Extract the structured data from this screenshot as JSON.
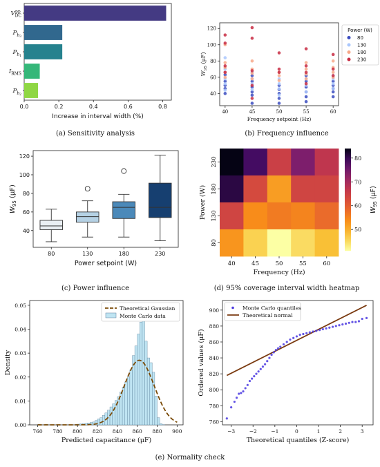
{
  "captions": {
    "a": "(a) Sensitivity analysis",
    "b": "(b) Frequency influence",
    "c": "(c) Power influence",
    "d": "(d) 95% coverage interval width heatmap",
    "e": "(e) Normality check"
  },
  "chart_data": [
    {
      "id": "a",
      "type": "bar",
      "orientation": "horizontal",
      "title": "",
      "xlabel": "Increase in interval width (%)",
      "ylabel": "",
      "xlim": [
        0,
        0.85
      ],
      "xticks": [
        0.0,
        0.2,
        0.4,
        0.6,
        0.8
      ],
      "xtick_labels": [
        "0.0",
        "0.2",
        "0.4",
        "0.6",
        "0.8"
      ],
      "categories": [
        {
          "base": "V",
          "sub": "DC",
          "sup": "pp"
        },
        {
          "base": "P",
          "sub": "h",
          "subsub": "3"
        },
        {
          "base": "P",
          "sub": "h",
          "subsub": "1"
        },
        {
          "base": "I",
          "sub": "RMS"
        },
        {
          "base": "P",
          "sub": "h",
          "subsub": "2"
        }
      ],
      "values": [
        0.82,
        0.22,
        0.22,
        0.09,
        0.08
      ],
      "colors": [
        "#443a83",
        "#31688e",
        "#26828e",
        "#35b779",
        "#8fd744"
      ]
    },
    {
      "id": "b",
      "type": "scatter",
      "title": "",
      "xlabel": "Frequency setpoint (Hz)",
      "ylabel": "W95 (μF)",
      "ylabel_parts": {
        "base": "W",
        "sub": "95",
        "rest": " (μF)"
      },
      "xlim": [
        39,
        61
      ],
      "ylim": [
        25,
        127
      ],
      "xticks": [
        40,
        45,
        50,
        55,
        60
      ],
      "yticks": [
        40,
        60,
        80,
        100,
        120
      ],
      "legend": {
        "title": "Power (W)",
        "placement": "outside-right"
      },
      "series": [
        {
          "name": "80",
          "color": "#3b4cc0",
          "points": [
            [
              40,
              40
            ],
            [
              40,
              46
            ],
            [
              40,
              50
            ],
            [
              40,
              55
            ],
            [
              40,
              63
            ],
            [
              45,
              28
            ],
            [
              45,
              38
            ],
            [
              45,
              42
            ],
            [
              45,
              48
            ],
            [
              45,
              55
            ],
            [
              45,
              62
            ],
            [
              50,
              28
            ],
            [
              50,
              34
            ],
            [
              50,
              40
            ],
            [
              50,
              45
            ],
            [
              50,
              50
            ],
            [
              55,
              30
            ],
            [
              55,
              36
            ],
            [
              55,
              42
            ],
            [
              55,
              48
            ],
            [
              55,
              55
            ],
            [
              55,
              62
            ],
            [
              60,
              36
            ],
            [
              60,
              42
            ],
            [
              60,
              46
            ],
            [
              60,
              50
            ],
            [
              60,
              55
            ]
          ]
        },
        {
          "name": "130",
          "color": "#aac7fd",
          "points": [
            [
              40,
              44
            ],
            [
              40,
              52
            ],
            [
              40,
              58
            ],
            [
              40,
              66
            ],
            [
              40,
              70
            ],
            [
              40,
              84
            ],
            [
              45,
              45
            ],
            [
              45,
              52
            ],
            [
              45,
              58
            ],
            [
              45,
              66
            ],
            [
              50,
              38
            ],
            [
              50,
              46
            ],
            [
              50,
              52
            ],
            [
              50,
              58
            ],
            [
              55,
              42
            ],
            [
              55,
              50
            ],
            [
              55,
              58
            ],
            [
              55,
              64
            ],
            [
              60,
              46
            ],
            [
              60,
              52
            ],
            [
              60,
              58
            ],
            [
              60,
              62
            ]
          ]
        },
        {
          "name": "180",
          "color": "#f7a889",
          "points": [
            [
              40,
              60
            ],
            [
              40,
              66
            ],
            [
              40,
              72
            ],
            [
              40,
              78
            ],
            [
              40,
              100
            ],
            [
              45,
              58
            ],
            [
              45,
              65
            ],
            [
              45,
              70
            ],
            [
              45,
              80
            ],
            [
              50,
              56
            ],
            [
              50,
              62
            ],
            [
              50,
              66
            ],
            [
              55,
              58
            ],
            [
              55,
              64
            ],
            [
              55,
              70
            ],
            [
              55,
              78
            ],
            [
              60,
              60
            ],
            [
              60,
              66
            ],
            [
              60,
              72
            ],
            [
              60,
              80
            ]
          ]
        },
        {
          "name": "230",
          "color": "#c82c43",
          "points": [
            [
              40,
              66
            ],
            [
              40,
              74
            ],
            [
              40,
              102
            ],
            [
              40,
              112
            ],
            [
              45,
              34
            ],
            [
              45,
              50
            ],
            [
              45,
              68
            ],
            [
              45,
              108
            ],
            [
              45,
              121
            ],
            [
              50,
              66
            ],
            [
              50,
              70
            ],
            [
              50,
              90
            ],
            [
              55,
              52
            ],
            [
              55,
              66
            ],
            [
              55,
              74
            ],
            [
              55,
              95
            ],
            [
              60,
              62
            ],
            [
              60,
              70
            ],
            [
              60,
              88
            ]
          ]
        }
      ]
    },
    {
      "id": "c",
      "type": "box",
      "title": "",
      "xlabel": "Power setpoint (W)",
      "ylabel": "W95 (μF)",
      "ylabel_parts": {
        "base": "W",
        "sub": "95",
        "rest": " (μF)"
      },
      "ylim": [
        22,
        126
      ],
      "yticks": [
        40,
        60,
        80,
        100,
        120
      ],
      "categories": [
        "80",
        "130",
        "180",
        "230"
      ],
      "boxes": [
        {
          "category": "80",
          "min": 28,
          "q1": 41,
          "median": 45,
          "q3": 51,
          "max": 63,
          "outliers": [],
          "color": "#e9eef3"
        },
        {
          "category": "130",
          "min": 33,
          "q1": 49,
          "median": 55,
          "q3": 60,
          "max": 72,
          "outliers": [
            85
          ],
          "color": "#b5d1e4"
        },
        {
          "category": "180",
          "min": 33,
          "q1": 53,
          "median": 65,
          "q3": 71,
          "max": 79,
          "outliers": [
            104
          ],
          "color": "#4b89b9"
        },
        {
          "category": "230",
          "min": 29,
          "q1": 54,
          "median": 65,
          "q3": 91,
          "max": 121,
          "outliers": [],
          "color": "#163f70"
        }
      ]
    },
    {
      "id": "d",
      "type": "heatmap",
      "title": "",
      "xlabel": "Frequency (Hz)",
      "ylabel": "Power (W)",
      "x": [
        "40",
        "45",
        "50",
        "55",
        "60"
      ],
      "y": [
        "230",
        "180",
        "130",
        "80"
      ],
      "values": [
        [
          84,
          79,
          65,
          74,
          67
        ],
        [
          81,
          63,
          52,
          64,
          64
        ],
        [
          64,
          54,
          56,
          55,
          58
        ],
        [
          53,
          46,
          41,
          45,
          48
        ]
      ],
      "colorbar": {
        "label": "W95 (μF)",
        "label_parts": {
          "base": "W",
          "sub": "95",
          "rest": " (μF)"
        },
        "ticks": [
          50,
          60,
          70,
          80
        ],
        "range": [
          41,
          84
        ],
        "colormap": "inferno_r"
      }
    },
    {
      "id": "e1",
      "type": "histogram",
      "title": "",
      "xlabel": "Predicted capacitance (μF)",
      "ylabel": "Density",
      "xlim": [
        752,
        906
      ],
      "ylim": [
        0,
        0.052
      ],
      "xticks": [
        760,
        780,
        800,
        820,
        840,
        860,
        880,
        900
      ],
      "yticks": [
        0.0,
        0.01,
        0.02,
        0.03,
        0.04,
        0.05
      ],
      "ytick_labels": [
        "0.00",
        "0.01",
        "0.02",
        "0.03",
        "0.04",
        "0.05"
      ],
      "legend": {
        "placement": "top-left"
      },
      "series": [
        {
          "name": "Theoretical Gaussian",
          "kind": "curve",
          "color": "#7a4a06",
          "mean": 862,
          "std": 15,
          "peak": 0.027
        },
        {
          "name": "Monte Carlo data",
          "kind": "bars",
          "color": "#bfe4f2",
          "bin_start": 760,
          "bin_width": 2.5,
          "values": [
            0.0002,
            0,
            0,
            0.0002,
            0,
            0,
            0,
            0,
            0,
            0,
            0,
            0,
            0,
            0,
            0,
            0.0002,
            0.0003,
            0.0004,
            0.0005,
            0.0006,
            0.0008,
            0.001,
            0.0012,
            0.0018,
            0.0025,
            0.003,
            0.004,
            0.005,
            0.0062,
            0.0075,
            0.0088,
            0.0102,
            0.0118,
            0.0138,
            0.0158,
            0.018,
            0.02,
            0.023,
            0.029,
            0.033,
            0.038,
            0.043,
            0.044,
            0.035,
            0.028,
            0.026,
            0.022,
            0.012,
            0.003,
            0.0005,
            0.0001
          ]
        }
      ]
    },
    {
      "id": "e2",
      "type": "scatter",
      "subtype": "qq",
      "title": "",
      "xlabel": "Theoretical quantiles (Z-score)",
      "ylabel": "Ordered values (μF)",
      "xlim": [
        -3.4,
        3.5
      ],
      "ylim": [
        756,
        912
      ],
      "xticks": [
        -3,
        -2,
        -1,
        0,
        1,
        2,
        3
      ],
      "yticks": [
        760,
        780,
        800,
        820,
        840,
        860,
        880,
        900
      ],
      "legend": {
        "placement": "top-left"
      },
      "series": [
        {
          "name": "Monte Carlo quantiles",
          "kind": "points",
          "color": "#4a38e0",
          "points": [
            [
              -3.2,
              764
            ],
            [
              -3.0,
              778
            ],
            [
              -2.85,
              785
            ],
            [
              -2.75,
              790
            ],
            [
              -2.65,
              795
            ],
            [
              -2.55,
              796
            ],
            [
              -2.45,
              798
            ],
            [
              -2.35,
              802
            ],
            [
              -2.25,
              806
            ],
            [
              -2.15,
              811
            ],
            [
              -2.05,
              814
            ],
            [
              -1.95,
              817
            ],
            [
              -1.85,
              820
            ],
            [
              -1.75,
              823
            ],
            [
              -1.65,
              826
            ],
            [
              -1.55,
              829
            ],
            [
              -1.45,
              832
            ],
            [
              -1.35,
              836
            ],
            [
              -1.25,
              840
            ],
            [
              -1.15,
              844
            ],
            [
              -1.05,
              847
            ],
            [
              -0.95,
              850
            ],
            [
              -0.85,
              852
            ],
            [
              -0.75,
              854
            ],
            [
              -0.6,
              857
            ],
            [
              -0.45,
              860
            ],
            [
              -0.3,
              863
            ],
            [
              -0.15,
              865
            ],
            [
              0.0,
              867
            ],
            [
              0.15,
              869
            ],
            [
              0.3,
              870
            ],
            [
              0.45,
              871
            ],
            [
              0.6,
              872
            ],
            [
              0.75,
              873
            ],
            [
              0.9,
              874
            ],
            [
              1.05,
              875
            ],
            [
              1.2,
              876
            ],
            [
              1.35,
              877
            ],
            [
              1.5,
              878
            ],
            [
              1.65,
              879
            ],
            [
              1.8,
              880
            ],
            [
              1.95,
              881
            ],
            [
              2.1,
              882
            ],
            [
              2.25,
              883
            ],
            [
              2.4,
              884
            ],
            [
              2.55,
              885
            ],
            [
              2.7,
              885
            ],
            [
              2.85,
              886
            ],
            [
              3.0,
              889
            ],
            [
              3.2,
              890
            ]
          ]
        },
        {
          "name": "Theoretical normal",
          "kind": "line",
          "color": "#7a3a10",
          "points": [
            [
              -3.2,
              818
            ],
            [
              3.2,
              906
            ]
          ]
        }
      ]
    }
  ]
}
